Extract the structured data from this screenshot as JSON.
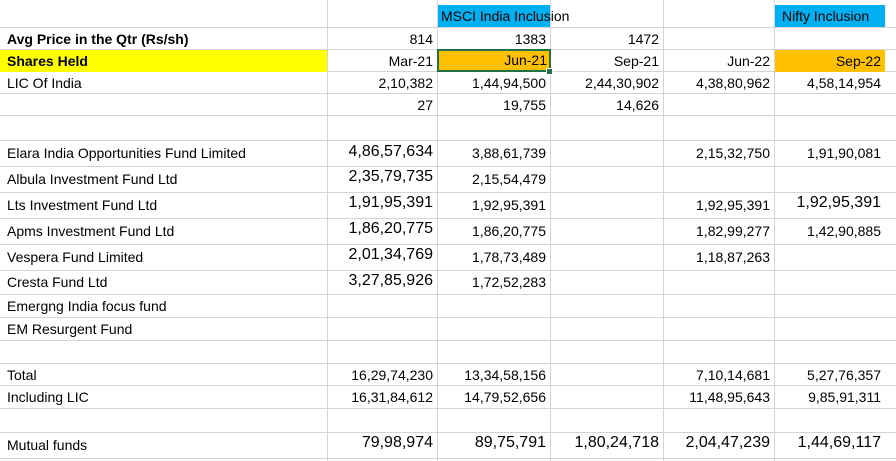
{
  "header": {
    "msci": "MSCI India Inclusion",
    "nifty": "Nifty Inclusion"
  },
  "avg_price": {
    "label": "Avg Price in the Qtr (Rs/sh)",
    "mar21": "814",
    "jun21": "1383",
    "sep21": "1472"
  },
  "shares_held": {
    "label": "Shares Held",
    "mar21": "Mar-21",
    "jun21": "Jun-21",
    "sep21": "Sep-21",
    "jun22": "Jun-22",
    "sep22": "Sep-22"
  },
  "lic": {
    "label": "LIC Of India",
    "mar21": "2,10,382",
    "jun21": "1,44,94,500",
    "sep21": "2,44,30,902",
    "jun22": "4,38,80,962",
    "sep22": "4,58,14,954"
  },
  "lic_value": {
    "mar21": "27",
    "jun21": "19,755",
    "sep21": "14,626"
  },
  "funds": [
    {
      "name": "Elara India Opportunities Fund Limited",
      "mar21": "4,86,57,634",
      "jun21": "3,88,61,739",
      "sep21": "",
      "jun22": "2,15,32,750",
      "sep22": "1,91,90,081"
    },
    {
      "name": "Albula Investment Fund Ltd",
      "mar21": "2,35,79,735",
      "jun21": "2,15,54,479",
      "sep21": "",
      "jun22": "",
      "sep22": ""
    },
    {
      "name": "Lts Investment Fund Ltd",
      "mar21": "1,91,95,391",
      "jun21": "1,92,95,391",
      "sep21": "",
      "jun22": "1,92,95,391",
      "sep22": "1,92,95,391"
    },
    {
      "name": "Apms Investment Fund Ltd",
      "mar21": "1,86,20,775",
      "jun21": "1,86,20,775",
      "sep21": "",
      "jun22": "1,82,99,277",
      "sep22": "1,42,90,885"
    },
    {
      "name": "Vespera Fund Limited",
      "mar21": "2,01,34,769",
      "jun21": "1,78,73,489",
      "sep21": "",
      "jun22": "1,18,87,263",
      "sep22": ""
    },
    {
      "name": "Cresta Fund Ltd",
      "mar21": "3,27,85,926",
      "jun21": "1,72,52,283",
      "sep21": "",
      "jun22": "",
      "sep22": ""
    },
    {
      "name": "Emergng India focus fund",
      "mar21": "",
      "jun21": "",
      "sep21": "",
      "jun22": "",
      "sep22": ""
    },
    {
      "name": "EM Resurgent Fund",
      "mar21": "",
      "jun21": "",
      "sep21": "",
      "jun22": "",
      "sep22": ""
    }
  ],
  "total": {
    "label": "Total",
    "mar21": "16,29,74,230",
    "jun21": "13,34,58,156",
    "jun22": "7,10,14,681",
    "sep22": "5,27,76,357"
  },
  "including_lic": {
    "label": "Including LIC",
    "mar21": "16,31,84,612",
    "jun21": "14,79,52,656",
    "jun22": "11,48,95,643",
    "sep22": "9,85,91,311"
  },
  "mutual_funds": {
    "label": "Mutual funds",
    "mar21": "79,98,974",
    "jun21": "89,75,791",
    "sep21": "1,80,24,718",
    "jun22": "2,04,47,239",
    "sep22": "1,44,69,117"
  },
  "colors": {
    "yellow_fill": "#ffff00",
    "orange_fill": "#ffc000",
    "blue_fill": "#00b0f0",
    "selection_border": "#217346",
    "gridline": "#d4d4d4"
  }
}
